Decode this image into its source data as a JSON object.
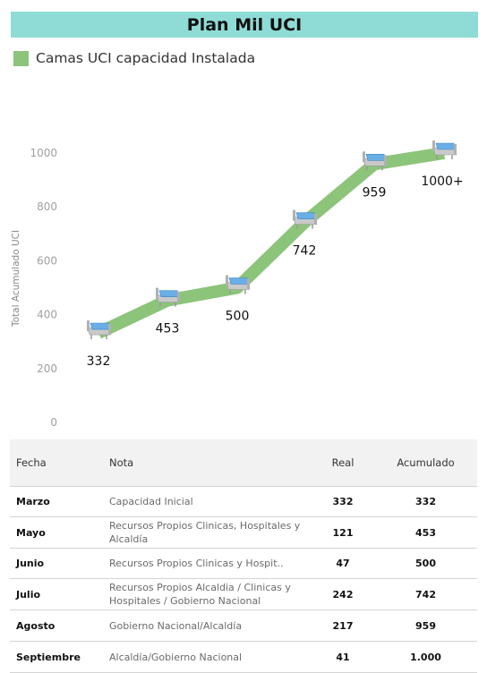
{
  "header": {
    "title": "Plan Mil UCI"
  },
  "chart_data": {
    "type": "line",
    "legend": [
      {
        "label": "Camas UCI capacidad Instalada",
        "color": "#8cc47a"
      }
    ],
    "ylabel": "Total Acumulado UCI",
    "ylim": [
      0,
      1000
    ],
    "yticks": [
      0,
      200,
      400,
      600,
      800,
      1000
    ],
    "categories": [
      "Marzo",
      "Mayo",
      "Junio",
      "Julio",
      "Agosto",
      "Septiembre"
    ],
    "series": [
      {
        "name": "Camas UCI capacidad Instalada",
        "values": [
          332,
          453,
          500,
          742,
          959,
          1000
        ],
        "labels": [
          "332",
          "453",
          "500",
          "742",
          "959",
          "1000+"
        ]
      }
    ],
    "marker_icon": "hospital-bed-icon",
    "line_color": "#8cc47a",
    "grid": false,
    "legend_position": "top-left"
  },
  "table": {
    "headers": {
      "fecha": "Fecha",
      "nota": "Nota",
      "real": "Real",
      "acumulado": "Acumulado"
    },
    "rows": [
      {
        "fecha": "Marzo",
        "nota": "Capacidad Inicial",
        "real": "332",
        "acumulado": "332"
      },
      {
        "fecha": "Mayo",
        "nota": "Recursos Propios Clinicas, Hospitales y Alcaldía",
        "real": "121",
        "acumulado": "453"
      },
      {
        "fecha": "Junio",
        "nota": "Recursos Propios Clinicas y Hospit..",
        "real": "47",
        "acumulado": "500"
      },
      {
        "fecha": "Julio",
        "nota": "Recursos Propios Alcaldia / Clinicas y Hospitales / Gobierno Nacional",
        "real": "242",
        "acumulado": "742"
      },
      {
        "fecha": "Agosto",
        "nota": "Gobierno Nacional/Alcaldía",
        "real": "217",
        "acumulado": "959"
      },
      {
        "fecha": "Septiembre",
        "nota": "Alcaldía/Gobierno Nacional",
        "real": "41",
        "acumulado": "1.000"
      }
    ]
  }
}
